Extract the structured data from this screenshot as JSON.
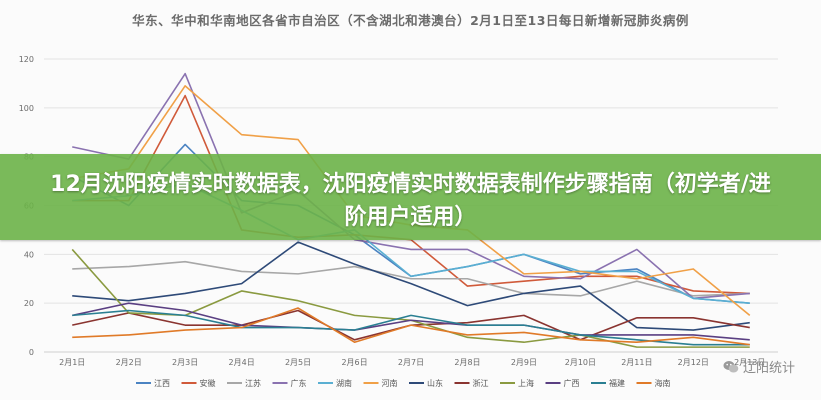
{
  "banner": {
    "text": "12月沈阳疫情实时数据表，沈阳疫情实时数据表制作步骤指南（初学者/进阶用户适用）"
  },
  "watermark": {
    "text": "辽阳统计"
  },
  "chart_data": {
    "type": "line",
    "title": "华东、华中和华南地区各省市自治区（不含湖北和港澳台）2月1日至13日每日新增新冠肺炎病例",
    "xlabel": "",
    "ylabel": "",
    "ylim": [
      0,
      120
    ],
    "yticks": [
      "0",
      "20",
      "40",
      "60",
      "80",
      "100",
      "120"
    ],
    "grid": true,
    "legend_position": "bottom",
    "categories": [
      "2月1日",
      "2月2日",
      "2月3日",
      "2月4日",
      "2月5日",
      "2月6日",
      "2月7日",
      "2月8日",
      "2月9日",
      "2月10日",
      "2月11日",
      "2月12日",
      "2月13日"
    ],
    "series": [
      {
        "name": "江西",
        "color": "#4b83c2",
        "values": [
          72,
          60,
          85,
          62,
          60,
          48,
          31,
          35,
          40,
          32,
          34,
          22,
          20
        ]
      },
      {
        "name": "安徽",
        "color": "#d05a3a",
        "values": [
          62,
          62,
          105,
          50,
          47,
          48,
          46,
          27,
          29,
          31,
          31,
          25,
          24
        ]
      },
      {
        "name": "江苏",
        "color": "#a7a7a7",
        "values": [
          34,
          35,
          37,
          33,
          32,
          35,
          30,
          30,
          24,
          23,
          29,
          23,
          24
        ]
      },
      {
        "name": "广东",
        "color": "#8a72b0",
        "values": [
          84,
          79,
          114,
          57,
          66,
          46,
          42,
          42,
          31,
          30,
          42,
          22,
          24
        ]
      },
      {
        "name": "湖南",
        "color": "#5aafd2",
        "values": [
          62,
          64,
          69,
          58,
          46,
          50,
          31,
          35,
          40,
          33,
          33,
          22,
          20
        ]
      },
      {
        "name": "河南",
        "color": "#f0a047",
        "values": [
          71,
          75,
          109,
          89,
          87,
          56,
          52,
          50,
          32,
          33,
          30,
          34,
          15
        ]
      },
      {
        "name": "山东",
        "color": "#2e4a78",
        "values": [
          23,
          21,
          24,
          28,
          45,
          36,
          28,
          19,
          24,
          27,
          10,
          9,
          12
        ]
      },
      {
        "name": "浙江",
        "color": "#8a3430",
        "values": [
          11,
          16,
          11,
          11,
          17,
          5,
          11,
          12,
          15,
          5,
          14,
          14,
          10
        ]
      },
      {
        "name": "上海",
        "color": "#8a9a40",
        "values": [
          42,
          16,
          15,
          25,
          21,
          15,
          13,
          6,
          4,
          7,
          2,
          2,
          2
        ]
      },
      {
        "name": "广西",
        "color": "#5a3f82",
        "values": [
          15,
          20,
          17,
          11,
          10,
          9,
          13,
          11,
          11,
          7,
          7,
          7,
          5
        ]
      },
      {
        "name": "福建",
        "color": "#2a7f92",
        "values": [
          15,
          17,
          15,
          10,
          10,
          9,
          15,
          11,
          11,
          7,
          5,
          3,
          3
        ]
      },
      {
        "name": "海南",
        "color": "#e07a28",
        "values": [
          6,
          7,
          9,
          10,
          18,
          4,
          11,
          7,
          8,
          5,
          4,
          6,
          3
        ]
      }
    ]
  }
}
